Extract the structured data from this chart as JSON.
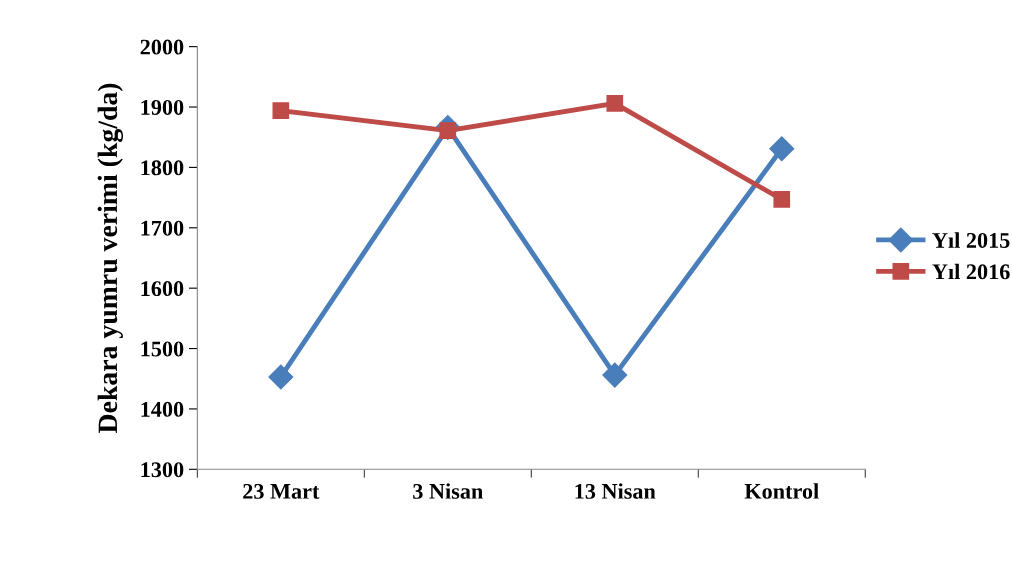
{
  "chart_data": {
    "type": "line",
    "ylabel": "Dekara yumru verimi (kg/da)",
    "categories": [
      "23 Mart",
      "3 Nisan",
      "13 Nisan",
      "Kontrol"
    ],
    "series": [
      {
        "name": "Yıl 2015",
        "color": "#4a7ebb",
        "values": [
          1453,
          1866,
          1456,
          1831
        ],
        "marker": "diamond"
      },
      {
        "name": "Yıl 2016",
        "color": "#be4b48",
        "values": [
          1894,
          1861,
          1906,
          1747
        ],
        "marker": "square"
      }
    ],
    "ylim": [
      1300,
      2000
    ],
    "yticks": [
      1300,
      1400,
      1500,
      1600,
      1700,
      1800,
      1900,
      2000
    ],
    "grid": false,
    "legend": "right",
    "line_style": "solid"
  }
}
